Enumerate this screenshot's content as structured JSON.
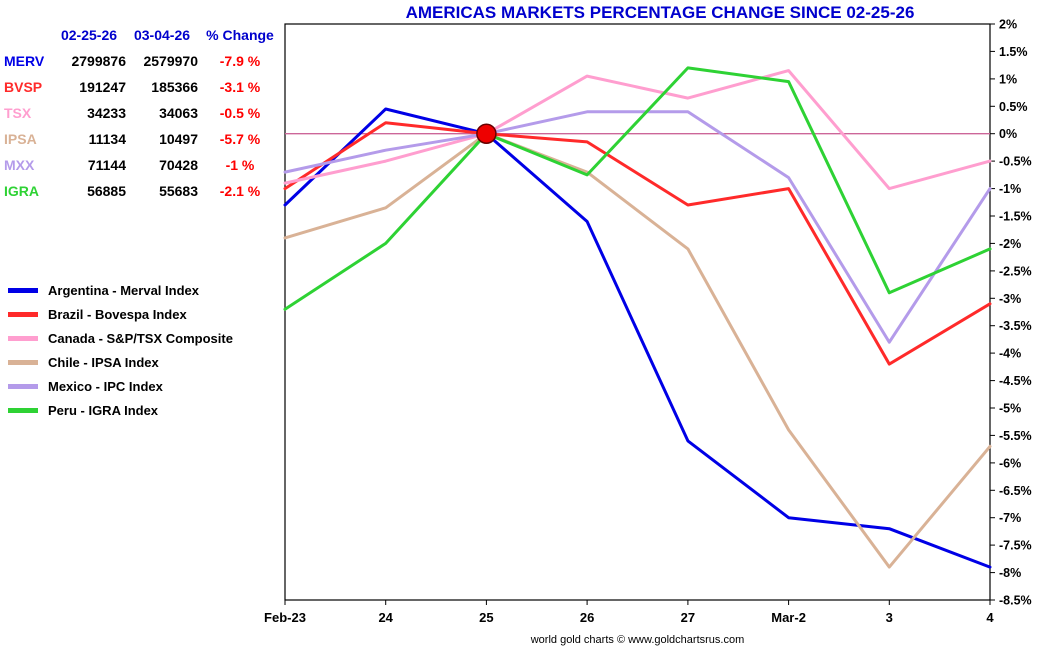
{
  "title": "AMERICAS MARKETS PERCENTAGE CHANGE SINCE 02-25-26",
  "footer": "world gold charts © www.goldchartsrus.com",
  "table": {
    "headers": [
      "02-25-26",
      "03-04-26",
      "% Change"
    ],
    "rows": [
      {
        "label": "MERV",
        "color": "#0000e6",
        "start": "2799876",
        "end": "2579970",
        "change": "-7.9 %"
      },
      {
        "label": "BVSP",
        "color": "#ff2a2a",
        "start": "191247",
        "end": "185366",
        "change": "-3.1 %"
      },
      {
        "label": "TSX",
        "color": "#ff9ecf",
        "start": "34233",
        "end": "34063",
        "change": "-0.5 %"
      },
      {
        "label": "IPSA",
        "color": "#d9b296",
        "start": "11134",
        "end": "10497",
        "change": "-5.7 %"
      },
      {
        "label": "MXX",
        "color": "#b49bea",
        "start": "71144",
        "end": "70428",
        "change": "-1 %"
      },
      {
        "label": "IGRA",
        "color": "#2ed234",
        "start": "56885",
        "end": "55683",
        "change": "-2.1 %"
      }
    ]
  },
  "legend": [
    {
      "label": "Argentina - Merval Index",
      "color": "#0000e6"
    },
    {
      "label": "Brazil - Bovespa Index",
      "color": "#ff2a2a"
    },
    {
      "label": "Canada - S&P/TSX Composite",
      "color": "#ff9ecf"
    },
    {
      "label": "Chile - IPSA Index",
      "color": "#d9b296"
    },
    {
      "label": "Mexico - IPC Index",
      "color": "#b49bea"
    },
    {
      "label": "Peru - IGRA Index",
      "color": "#2ed234"
    }
  ],
  "chart_data": {
    "type": "line",
    "title": "AMERICAS MARKETS PERCENTAGE CHANGE SINCE 02-25-26",
    "x": [
      "Feb-23",
      "24",
      "25",
      "26",
      "27",
      "Mar-2",
      "3",
      "4"
    ],
    "ylabel": "% change",
    "ylim": [
      -8.5,
      2
    ],
    "ytick_step": 0.5,
    "yticks": [
      "2%",
      "1.5%",
      "1%",
      "0.5%",
      "0%",
      "-0.5%",
      "-1%",
      "-1.5%",
      "-2%",
      "-2.5%",
      "-3%",
      "-3.5%",
      "-4%",
      "-4.5%",
      "-5%",
      "-5.5%",
      "-6%",
      "-6.5%",
      "-7%",
      "-7.5%",
      "-8%",
      "-8.5%"
    ],
    "grid": false,
    "legend_position": "left",
    "zero_line_color": "#cc6699",
    "marker": {
      "x_index": 2,
      "value": 0,
      "color": "#ee0000"
    },
    "series": [
      {
        "name": "MERV",
        "label": "Argentina - Merval Index",
        "color": "#0000e6",
        "values": [
          -1.3,
          0.45,
          0,
          -1.6,
          -5.6,
          -7.0,
          -7.2,
          -7.9
        ]
      },
      {
        "name": "BVSP",
        "label": "Brazil - Bovespa Index",
        "color": "#ff2a2a",
        "values": [
          -1.0,
          0.2,
          0,
          -0.15,
          -1.3,
          -1.0,
          -4.2,
          -3.1
        ]
      },
      {
        "name": "TSX",
        "label": "Canada - S&P/TSX Composite",
        "color": "#ff9ecf",
        "values": [
          -0.9,
          -0.5,
          0,
          1.05,
          0.65,
          1.15,
          -1.0,
          -0.5
        ]
      },
      {
        "name": "IPSA",
        "label": "Chile - IPSA Index",
        "color": "#d9b296",
        "values": [
          -1.9,
          -1.35,
          0,
          -0.7,
          -2.1,
          -5.4,
          -7.9,
          -5.7
        ]
      },
      {
        "name": "MXX",
        "label": "Mexico - IPC Index",
        "color": "#b49bea",
        "values": [
          -0.7,
          -0.3,
          0,
          0.4,
          0.4,
          -0.8,
          -3.8,
          -1.0
        ]
      },
      {
        "name": "IGRA",
        "label": "Peru - IGRA Index",
        "color": "#2ed234",
        "values": [
          -3.2,
          -2.0,
          0,
          -0.75,
          1.2,
          0.95,
          -2.9,
          -2.1
        ]
      }
    ]
  }
}
